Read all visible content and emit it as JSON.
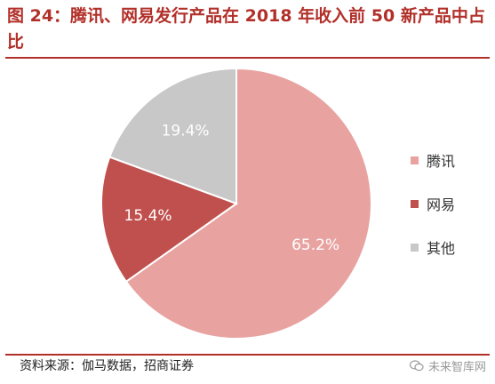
{
  "title": "图 24：腾讯、网易发行产品在 2018 年收入前 50 新产品中占比",
  "source": "资料来源：伽马数据，招商证券",
  "watermark": "未来智库网",
  "chart_data": {
    "type": "pie",
    "slices": [
      {
        "name": "腾讯",
        "value": 65.2,
        "label": "65.2%",
        "color": "#e8a3a1"
      },
      {
        "name": "网易",
        "value": 15.4,
        "label": "15.4%",
        "color": "#c0504d"
      },
      {
        "name": "其他",
        "value": 19.4,
        "label": "19.4%",
        "color": "#c8c8c8"
      }
    ],
    "legend": {
      "position": "right"
    }
  }
}
